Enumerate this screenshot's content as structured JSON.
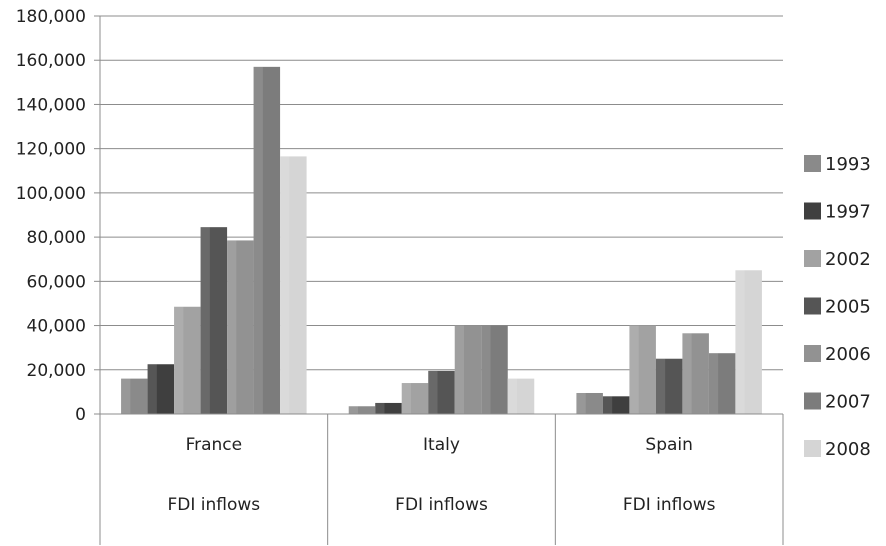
{
  "chart_data": {
    "type": "bar",
    "categories": [
      "France",
      "Italy",
      "Spain"
    ],
    "category_sublabels": [
      "FDI inflows",
      "FDI inflows",
      "FDI inflows"
    ],
    "series": [
      {
        "name": "1993",
        "values": [
          16000,
          3500,
          9500
        ],
        "color": "#8a8a8a"
      },
      {
        "name": "1997",
        "values": [
          22500,
          5000,
          8000
        ],
        "color": "#3f3f3f"
      },
      {
        "name": "2002",
        "values": [
          48500,
          14000,
          40000
        ],
        "color": "#a2a2a2"
      },
      {
        "name": "2005",
        "values": [
          84500,
          19500,
          25000
        ],
        "color": "#555555"
      },
      {
        "name": "2006",
        "values": [
          78500,
          40000,
          36500
        ],
        "color": "#929292"
      },
      {
        "name": "2007",
        "values": [
          157000,
          40000,
          27500
        ],
        "color": "#7c7c7c"
      },
      {
        "name": "2008",
        "values": [
          116500,
          16000,
          65000
        ],
        "color": "#d5d5d5"
      }
    ],
    "ylim": [
      0,
      180000
    ],
    "yticks": [
      "0",
      "20,000",
      "40,000",
      "60,000",
      "80,000",
      "100,000",
      "120,000",
      "140,000",
      "160,000",
      "180,000"
    ],
    "grid": true,
    "legend": "right"
  }
}
